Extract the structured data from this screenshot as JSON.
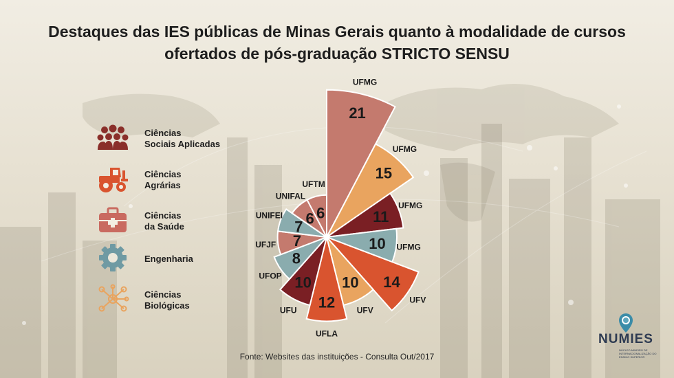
{
  "title_line1": "Destaques das IES públicas de Minas Gerais quanto à modalidade de cursos",
  "title_line2": "ofertados de pós-graduação STRICTO SENSU",
  "source": "Fonte: Websites das instituições - Consulta Out/2017",
  "logo": {
    "name": "NUMIES",
    "subtitle": "NÚCLEO MINEIRO DE INTERNACIONALIZAÇÃO DO ENSINO SUPERIOR"
  },
  "legend": [
    {
      "label_line1": "Ciências",
      "label_line2": "Sociais Aplicadas",
      "icon": "people-group-icon",
      "color": "#8a2f2a"
    },
    {
      "label_line1": "Ciências",
      "label_line2": "Agrárias",
      "icon": "tractor-icon",
      "color": "#d9542f"
    },
    {
      "label_line1": "Ciências",
      "label_line2": "da Saúde",
      "icon": "first-aid-kit-icon",
      "color": "#c96a60"
    },
    {
      "label_line1": "Engenharia",
      "label_line2": "",
      "icon": "gear-icon",
      "color": "#6f9aa3"
    },
    {
      "label_line1": "Ciências",
      "label_line2": "Biológicas",
      "icon": "molecule-icon",
      "color": "#e9a45f"
    }
  ],
  "chart_data": {
    "type": "polar-area",
    "title": "Destaques das IES públicas de Minas Gerais quanto à modalidade de cursos ofertados de pós-graduação STRICTO SENSU",
    "unit": "",
    "series": [
      {
        "institution": "UFMG",
        "value": 21,
        "color": "#c47a6e"
      },
      {
        "institution": "UFMG",
        "value": 15,
        "color": "#e9a45f"
      },
      {
        "institution": "UFMG",
        "value": 11,
        "color": "#7a1f24"
      },
      {
        "institution": "UFMG",
        "value": 10,
        "color": "#8aacae"
      },
      {
        "institution": "UFV",
        "value": 14,
        "color": "#d9542f"
      },
      {
        "institution": "UFV",
        "value": 10,
        "color": "#e9a45f"
      },
      {
        "institution": "UFLA",
        "value": 12,
        "color": "#d9542f"
      },
      {
        "institution": "UFU",
        "value": 10,
        "color": "#7a1f24"
      },
      {
        "institution": "UFOP",
        "value": 8,
        "color": "#8aacae"
      },
      {
        "institution": "UFJF",
        "value": 7,
        "color": "#c47a6e"
      },
      {
        "institution": "UNIFEI",
        "value": 7,
        "color": "#8aacae"
      },
      {
        "institution": "UNIFAL",
        "value": 6,
        "color": "#c47a6e"
      },
      {
        "institution": "UFTM",
        "value": 6,
        "color": "#c47a6e"
      }
    ]
  }
}
